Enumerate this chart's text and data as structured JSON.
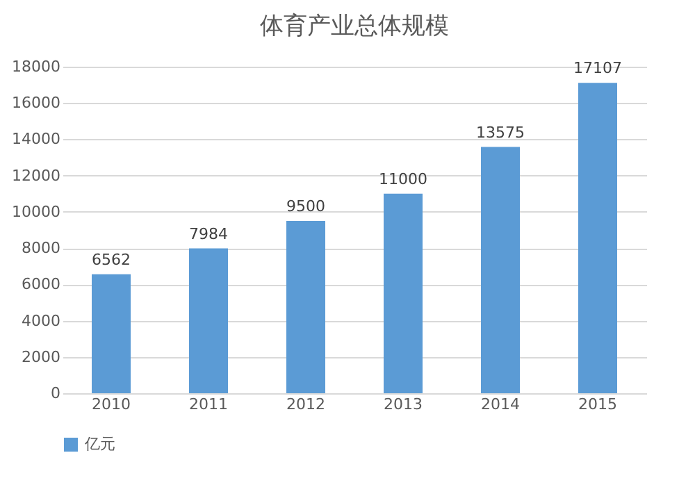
{
  "chart_data": {
    "type": "bar",
    "title": "体育产业总体规模",
    "categories": [
      "2010",
      "2011",
      "2012",
      "2013",
      "2014",
      "2015"
    ],
    "series": [
      {
        "name": "亿元",
        "color": "#5b9bd5",
        "values": [
          6562,
          7984,
          9500,
          11000,
          13575,
          17107
        ]
      }
    ],
    "ylim": [
      0,
      18000
    ],
    "yticks": [
      0,
      2000,
      4000,
      6000,
      8000,
      10000,
      12000,
      14000,
      16000,
      18000
    ],
    "grid": "y",
    "legend": "bottom",
    "data_labels": true
  }
}
